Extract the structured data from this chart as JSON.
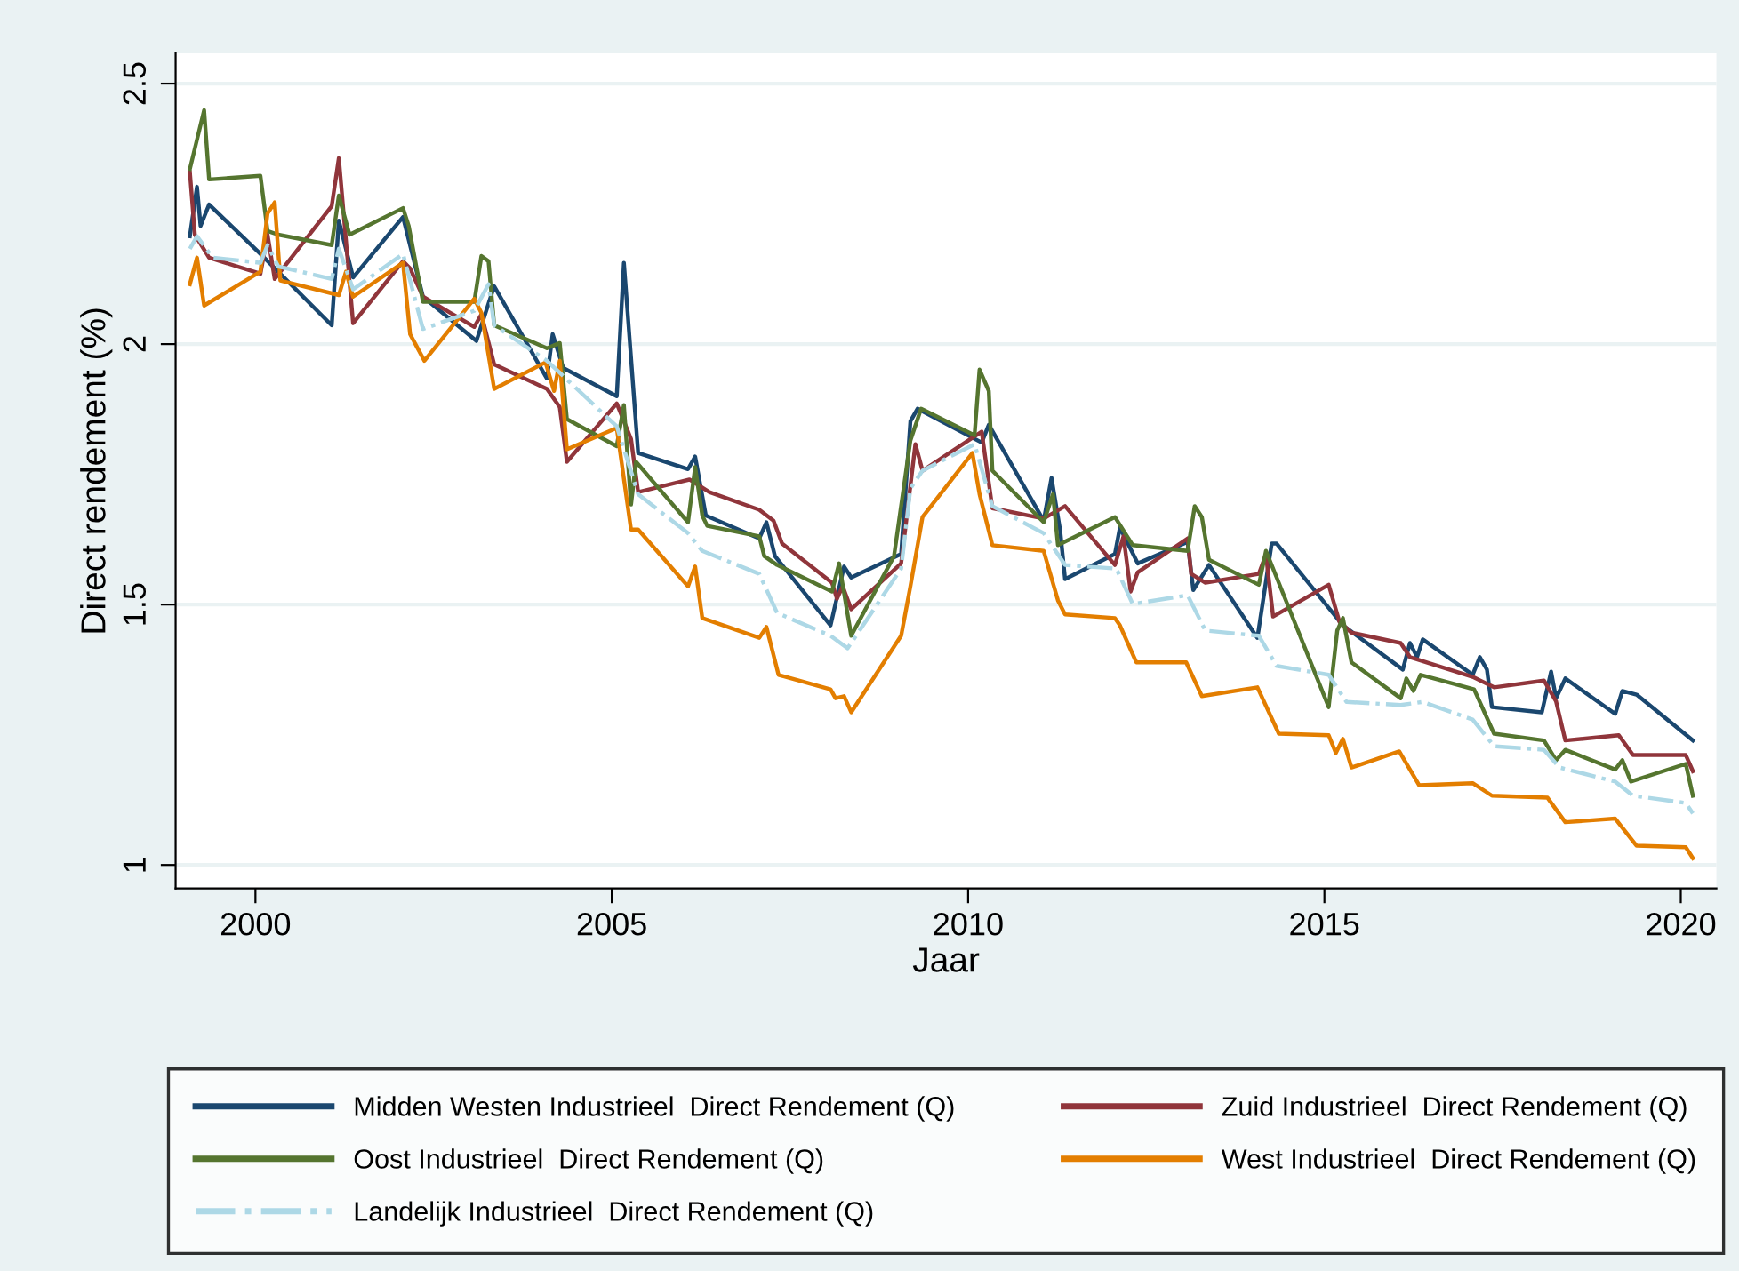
{
  "chart_data": {
    "type": "line",
    "xlabel": "Jaar",
    "ylabel": "Direct rendement (%)",
    "xlim": [
      1998.88,
      2020.5
    ],
    "xticks": [
      2000,
      2005,
      2010,
      2015,
      2020
    ],
    "ylim": [
      0.955,
      2.558
    ],
    "yticks": [
      1,
      1.5,
      2,
      2.5
    ],
    "grid": "y",
    "legend": "bottom",
    "marker": "none",
    "series": [
      {
        "name": "Midden Westen Industrieel  Direct Rendement (Q)",
        "color": "#1a476f",
        "line_style": "solid",
        "x": [
          1999.08,
          1999.18,
          1999.23,
          1999.35,
          2000.07,
          2001.07,
          2001.17,
          2001.37,
          2002.07,
          2002.35,
          2003.1,
          2003.35,
          2004.09,
          2004.17,
          2004.32,
          2005.07,
          2005.17,
          2005.37,
          2006.07,
          2006.17,
          2006.32,
          2007.07,
          2007.17,
          2007.29,
          2008.07,
          2008.26,
          2008.36,
          2009.06,
          2009.19,
          2009.29,
          2010.19,
          2010.29,
          2011.06,
          2011.17,
          2011.29,
          2011.36,
          2012.06,
          2012.13,
          2012.38,
          2013.08,
          2013.16,
          2013.38,
          2014.06,
          2014.26,
          2014.33,
          2015.26,
          2016.1,
          2016.2,
          2016.3,
          2016.38,
          2017.08,
          2017.18,
          2017.28,
          2017.35,
          2018.05,
          2018.18,
          2018.25,
          2018.38,
          2019.08,
          2019.18,
          2019.38,
          2020.17
        ],
        "values": [
          2.207,
          2.302,
          2.227,
          2.268,
          2.173,
          2.036,
          2.237,
          2.128,
          2.244,
          2.091,
          2.006,
          2.111,
          1.934,
          2.019,
          1.954,
          1.9,
          2.156,
          1.791,
          1.76,
          1.784,
          1.671,
          1.627,
          1.658,
          1.593,
          1.46,
          1.573,
          1.552,
          1.597,
          1.852,
          1.876,
          1.811,
          1.845,
          1.661,
          1.743,
          1.644,
          1.549,
          1.597,
          1.648,
          1.579,
          1.62,
          1.528,
          1.576,
          1.436,
          1.617,
          1.617,
          1.46,
          1.375,
          1.426,
          1.399,
          1.433,
          1.365,
          1.399,
          1.375,
          1.303,
          1.293,
          1.371,
          1.32,
          1.358,
          1.29,
          1.334,
          1.327,
          1.239
        ]
      },
      {
        "name": "Zuid Industrieel  Direct Rendement (Q)",
        "color": "#90353b",
        "line_style": "solid",
        "x": [
          1999.08,
          1999.15,
          1999.35,
          2000.07,
          2000.17,
          2000.27,
          2001.07,
          2001.17,
          2001.37,
          2002.07,
          2002.17,
          2002.35,
          2003.07,
          2003.17,
          2003.35,
          2004.09,
          2004.27,
          2004.37,
          2005.07,
          2005.27,
          2005.37,
          2006.09,
          2006.37,
          2007.07,
          2007.27,
          2007.39,
          2008.09,
          2008.16,
          2008.24,
          2008.36,
          2009.06,
          2009.26,
          2009.36,
          2010.19,
          2010.34,
          2011.06,
          2011.36,
          2012.06,
          2012.18,
          2012.28,
          2012.38,
          2013.08,
          2013.13,
          2013.33,
          2014.08,
          2014.18,
          2014.28,
          2015.06,
          2015.21,
          2015.38,
          2016.07,
          2016.2,
          2017.08,
          2017.38,
          2018.08,
          2018.25,
          2018.38,
          2019.13,
          2019.33,
          2020.07,
          2020.17
        ],
        "values": [
          2.33,
          2.21,
          2.166,
          2.135,
          2.21,
          2.125,
          2.265,
          2.357,
          2.04,
          2.159,
          2.145,
          2.091,
          2.033,
          2.057,
          1.961,
          1.914,
          1.879,
          1.774,
          1.886,
          1.818,
          1.716,
          1.74,
          1.716,
          1.682,
          1.661,
          1.617,
          1.542,
          1.511,
          1.535,
          1.491,
          1.579,
          1.808,
          1.757,
          1.832,
          1.685,
          1.665,
          1.689,
          1.576,
          1.631,
          1.525,
          1.562,
          1.627,
          1.559,
          1.542,
          1.559,
          1.596,
          1.477,
          1.538,
          1.467,
          1.446,
          1.426,
          1.399,
          1.361,
          1.341,
          1.354,
          1.314,
          1.239,
          1.249,
          1.211,
          1.211,
          1.18
        ]
      },
      {
        "name": "Oost Industrieel  Direct Rendement (Q)",
        "color": "#55752f",
        "line_style": "solid",
        "x": [
          1999.08,
          1999.28,
          1999.35,
          2000.07,
          2000.17,
          2000.32,
          2001.07,
          2001.17,
          2001.32,
          2002.07,
          2002.15,
          2002.35,
          2003.07,
          2003.17,
          2003.27,
          2003.35,
          2004.09,
          2004.27,
          2004.37,
          2005.07,
          2005.17,
          2005.27,
          2005.34,
          2006.07,
          2006.17,
          2006.27,
          2006.34,
          2007.07,
          2007.14,
          2007.32,
          2008.09,
          2008.19,
          2008.36,
          2008.96,
          2009.19,
          2009.34,
          2010.09,
          2010.16,
          2010.29,
          2010.34,
          2011.06,
          2011.19,
          2011.26,
          2012.06,
          2012.31,
          2013.08,
          2013.18,
          2013.28,
          2013.38,
          2014.08,
          2014.18,
          2015.06,
          2015.18,
          2015.26,
          2015.38,
          2016.07,
          2016.15,
          2016.25,
          2016.35,
          2017.1,
          2017.38,
          2018.08,
          2018.25,
          2018.38,
          2019.08,
          2019.18,
          2019.3,
          2020.07,
          2020.17
        ],
        "values": [
          2.336,
          2.449,
          2.316,
          2.323,
          2.217,
          2.21,
          2.19,
          2.285,
          2.21,
          2.261,
          2.227,
          2.081,
          2.081,
          2.169,
          2.159,
          2.036,
          1.992,
          2.002,
          1.856,
          1.804,
          1.883,
          1.692,
          1.774,
          1.658,
          1.764,
          1.671,
          1.651,
          1.631,
          1.593,
          1.576,
          1.525,
          1.579,
          1.44,
          1.593,
          1.815,
          1.876,
          1.825,
          1.951,
          1.91,
          1.757,
          1.658,
          1.712,
          1.614,
          1.668,
          1.614,
          1.603,
          1.689,
          1.668,
          1.586,
          1.538,
          1.603,
          1.303,
          1.45,
          1.474,
          1.389,
          1.32,
          1.358,
          1.334,
          1.365,
          1.337,
          1.252,
          1.239,
          1.201,
          1.221,
          1.183,
          1.201,
          1.16,
          1.194,
          1.133
        ]
      },
      {
        "name": "West Industrieel  Direct Rendement (Q)",
        "color": "#e37e00",
        "line_style": "solid",
        "x": [
          1999.08,
          1999.18,
          1999.28,
          2000.07,
          2000.17,
          2000.27,
          2000.35,
          2001.17,
          2001.27,
          2001.37,
          2002.07,
          2002.17,
          2002.37,
          2003.07,
          2003.17,
          2003.35,
          2004.07,
          2004.19,
          2004.27,
          2004.37,
          2005.07,
          2005.27,
          2005.37,
          2006.07,
          2006.17,
          2006.27,
          2007.07,
          2007.17,
          2007.34,
          2008.07,
          2008.14,
          2008.26,
          2008.36,
          2009.06,
          2009.19,
          2009.36,
          2010.06,
          2010.16,
          2010.34,
          2011.06,
          2011.26,
          2011.36,
          2012.06,
          2012.13,
          2012.36,
          2013.06,
          2013.28,
          2014.06,
          2014.36,
          2015.06,
          2015.16,
          2015.26,
          2015.38,
          2016.05,
          2016.33,
          2017.08,
          2017.35,
          2018.13,
          2018.38,
          2019.08,
          2019.38,
          2020.07,
          2020.17
        ],
        "values": [
          2.115,
          2.166,
          2.074,
          2.139,
          2.251,
          2.272,
          2.122,
          2.094,
          2.139,
          2.091,
          2.156,
          2.019,
          1.968,
          2.087,
          2.06,
          1.914,
          1.965,
          1.91,
          1.968,
          1.798,
          1.839,
          1.644,
          1.644,
          1.535,
          1.573,
          1.474,
          1.436,
          1.457,
          1.365,
          1.337,
          1.32,
          1.324,
          1.293,
          1.44,
          1.535,
          1.668,
          1.791,
          1.712,
          1.614,
          1.603,
          1.508,
          1.481,
          1.474,
          1.46,
          1.389,
          1.389,
          1.324,
          1.341,
          1.252,
          1.249,
          1.215,
          1.242,
          1.187,
          1.218,
          1.153,
          1.157,
          1.133,
          1.129,
          1.082,
          1.089,
          1.037,
          1.034,
          1.013
        ]
      },
      {
        "name": "Landelijk Industrieel  Direct Rendement (Q)",
        "color": "#add8e6",
        "line_style": "dashdot",
        "x": [
          1999.08,
          1999.18,
          1999.4,
          2000.07,
          2000.17,
          2000.32,
          2001.07,
          2001.17,
          2001.37,
          2002.07,
          2002.35,
          2003.07,
          2003.27,
          2003.35,
          2004.09,
          2005.07,
          2005.37,
          2006.07,
          2006.27,
          2007.07,
          2007.32,
          2008.07,
          2008.31,
          2009.06,
          2009.19,
          2009.36,
          2010.09,
          2010.34,
          2011.06,
          2011.36,
          2012.08,
          2012.31,
          2013.08,
          2013.33,
          2014.08,
          2014.33,
          2015.06,
          2015.31,
          2016.07,
          2016.38,
          2017.08,
          2017.38,
          2018.08,
          2018.3,
          2019.08,
          2019.33,
          2020.07,
          2020.17
        ],
        "values": [
          2.183,
          2.207,
          2.166,
          2.156,
          2.19,
          2.149,
          2.125,
          2.183,
          2.105,
          2.173,
          2.029,
          2.064,
          2.115,
          2.036,
          1.968,
          1.842,
          1.712,
          1.637,
          1.603,
          1.559,
          1.484,
          1.44,
          1.416,
          1.569,
          1.723,
          1.757,
          1.808,
          1.689,
          1.637,
          1.576,
          1.569,
          1.501,
          1.518,
          1.45,
          1.44,
          1.382,
          1.365,
          1.313,
          1.307,
          1.313,
          1.279,
          1.228,
          1.221,
          1.187,
          1.16,
          1.133,
          1.119,
          1.099
        ]
      }
    ]
  }
}
